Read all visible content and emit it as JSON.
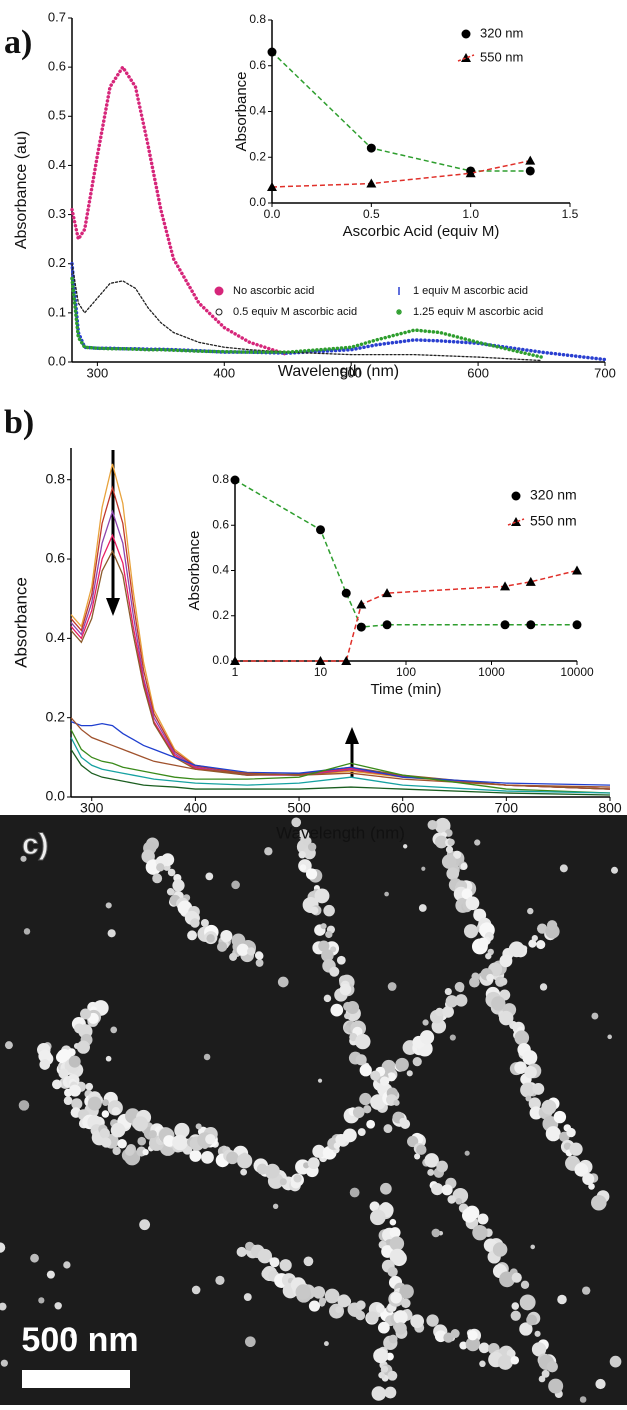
{
  "chart_data": [
    {
      "type": "line",
      "panel_label": "a)",
      "xlabel": "Wavelength (nm)",
      "ylabel": "Absorbance (au)",
      "xlim": [
        280,
        700
      ],
      "xticks": [
        300,
        400,
        500,
        600,
        700
      ],
      "ylim": [
        0,
        0.7
      ],
      "yticks": [
        {
          "value": 0,
          "label": "0.0"
        },
        0.1,
        0.2,
        0.3,
        0.4,
        0.5,
        0.6,
        0.7
      ],
      "x": [
        280,
        285,
        290,
        300,
        310,
        320,
        330,
        340,
        350,
        360,
        380,
        400,
        420,
        450,
        500,
        520,
        550,
        570,
        600,
        650,
        700
      ],
      "series": [
        {
          "name": "No ascorbic acid",
          "color": "#d6267a",
          "marker": "filled-circle",
          "line_style": "dotted",
          "values": [
            0.31,
            0.25,
            0.27,
            0.42,
            0.56,
            0.6,
            0.56,
            0.44,
            0.31,
            0.21,
            0.12,
            0.07,
            0.04,
            0.015,
            null,
            null,
            null,
            null,
            null,
            null,
            null
          ]
        },
        {
          "name": "1 equiv M ascorbic acid",
          "color": "#2a3fd0",
          "marker": "bar",
          "line_style": "dotted",
          "values": [
            0.2,
            0.06,
            0.03,
            0.028,
            0.028,
            0.027,
            0.027,
            0.026,
            0.026,
            0.025,
            0.023,
            0.02,
            0.02,
            0.018,
            0.025,
            0.035,
            0.045,
            0.043,
            0.038,
            0.02,
            0.005
          ]
        },
        {
          "name": "0.5 equiv M ascorbic acid",
          "color": "#222222",
          "marker": "open-circle",
          "line_style": "dotted",
          "values": [
            0.2,
            0.12,
            0.1,
            0.13,
            0.16,
            0.165,
            0.15,
            0.11,
            0.08,
            0.06,
            0.04,
            0.03,
            0.025,
            0.02,
            0.015,
            0.015,
            0.015,
            0.013,
            0.01,
            0.003,
            null
          ]
        },
        {
          "name": "1.25 equiv M ascorbic acid",
          "color": "#2e9e2e",
          "marker": "star",
          "line_style": "dotted",
          "values": [
            0.17,
            0.05,
            0.03,
            0.028,
            0.027,
            0.027,
            0.026,
            0.025,
            0.025,
            0.024,
            0.022,
            0.021,
            0.02,
            0.02,
            0.03,
            0.045,
            0.065,
            0.06,
            0.04,
            0.01,
            null
          ]
        }
      ]
    },
    {
      "type": "line",
      "xlabel": "Ascorbic Acid (equiv M)",
      "ylabel": "Absorbance",
      "xlim": [
        0,
        1.5
      ],
      "xticks": [
        {
          "value": 0,
          "label": "0.0"
        },
        0.5,
        {
          "value": 1,
          "label": "1.0"
        },
        1.5
      ],
      "ylim": [
        0,
        0.8
      ],
      "yticks": [
        {
          "value": 0,
          "label": "0.0"
        },
        0.2,
        0.4,
        0.6,
        0.8
      ],
      "x": [
        0,
        0.5,
        1,
        1.3
      ],
      "marker_color": "#000000",
      "line_style": "dashed",
      "series": [
        {
          "name": "320 nm",
          "color": "#2e9e2e",
          "marker": "filled-circle",
          "values": [
            0.66,
            0.24,
            0.14,
            0.14
          ]
        },
        {
          "name": "550 nm",
          "color": "#e0302a",
          "marker": "triangle",
          "values": [
            0.07,
            0.085,
            0.13,
            0.185
          ]
        }
      ]
    },
    {
      "type": "line",
      "panel_label": "b)",
      "xlabel": "Wavelength (nm)",
      "ylabel": "Absorbance",
      "xlim": [
        280,
        800
      ],
      "xticks": [
        300,
        400,
        500,
        600,
        700,
        800
      ],
      "ylim": [
        0,
        0.88
      ],
      "yticks": [
        {
          "value": 0,
          "label": "0.0"
        },
        0.2,
        0.4,
        0.6,
        0.8
      ],
      "x": [
        280,
        290,
        300,
        310,
        320,
        330,
        340,
        350,
        360,
        380,
        400,
        450,
        500,
        550,
        600,
        700,
        800
      ],
      "series": [
        {
          "color": "#e8a33d",
          "values": [
            0.46,
            0.43,
            0.53,
            0.73,
            0.84,
            0.74,
            0.52,
            0.34,
            0.22,
            0.12,
            0.08,
            0.06,
            0.055,
            0.065,
            0.05,
            0.03,
            0.02
          ]
        },
        {
          "color": "#c0392b",
          "values": [
            0.45,
            0.42,
            0.51,
            0.69,
            0.78,
            0.69,
            0.49,
            0.32,
            0.21,
            0.115,
            0.078,
            0.058,
            0.055,
            0.068,
            0.052,
            0.03,
            0.02
          ]
        },
        {
          "color": "#8e44ad",
          "values": [
            0.44,
            0.41,
            0.49,
            0.64,
            0.72,
            0.64,
            0.46,
            0.3,
            0.2,
            0.11,
            0.075,
            0.056,
            0.055,
            0.07,
            0.053,
            0.03,
            0.02
          ]
        },
        {
          "color": "#e91e63",
          "values": [
            0.43,
            0.4,
            0.47,
            0.6,
            0.66,
            0.59,
            0.43,
            0.29,
            0.19,
            0.105,
            0.073,
            0.055,
            0.056,
            0.072,
            0.054,
            0.03,
            0.02
          ]
        },
        {
          "color": "#8b5a2b",
          "values": [
            0.42,
            0.39,
            0.45,
            0.57,
            0.62,
            0.56,
            0.41,
            0.28,
            0.185,
            0.1,
            0.07,
            0.055,
            0.058,
            0.075,
            0.055,
            0.03,
            0.02
          ]
        },
        {
          "color": "#1f3fcf",
          "values": [
            0.19,
            0.18,
            0.18,
            0.185,
            0.18,
            0.16,
            0.145,
            0.13,
            0.12,
            0.1,
            0.08,
            0.062,
            0.06,
            0.075,
            0.05,
            0.035,
            0.03
          ]
        },
        {
          "color": "#a0522d",
          "values": [
            0.2,
            0.17,
            0.15,
            0.14,
            0.13,
            0.12,
            0.11,
            0.1,
            0.09,
            0.08,
            0.07,
            0.06,
            0.055,
            0.06,
            0.045,
            0.03,
            0.025
          ]
        },
        {
          "color": "#3a8a1a",
          "values": [
            0.17,
            0.12,
            0.1,
            0.09,
            0.085,
            0.075,
            0.07,
            0.065,
            0.06,
            0.05,
            0.045,
            0.045,
            0.05,
            0.085,
            0.055,
            0.02,
            0.01
          ]
        },
        {
          "color": "#17a2a2",
          "values": [
            0.15,
            0.1,
            0.08,
            0.07,
            0.065,
            0.06,
            0.055,
            0.05,
            0.045,
            0.04,
            0.035,
            0.03,
            0.035,
            0.05,
            0.03,
            0.015,
            0.01
          ]
        },
        {
          "color": "#1b5e20",
          "values": [
            0.12,
            0.08,
            0.06,
            0.05,
            0.045,
            0.04,
            0.035,
            0.03,
            0.028,
            0.025,
            0.02,
            0.02,
            0.02,
            0.025,
            0.02,
            0.01,
            0.005
          ]
        }
      ]
    },
    {
      "type": "line",
      "xlabel": "Time (min)",
      "ylabel": "Absorbance",
      "xscale": "log",
      "xlim": [
        1,
        10000
      ],
      "xticks": [
        1,
        10,
        100,
        1000,
        10000
      ],
      "ylim": [
        0,
        0.8
      ],
      "yticks": [
        {
          "value": 0,
          "label": "0.0"
        },
        0.2,
        0.4,
        0.6,
        0.8
      ],
      "x": [
        1,
        10,
        20,
        30,
        60,
        1440,
        2880,
        10000
      ],
      "marker_color": "#000000",
      "line_style": "dashed",
      "series": [
        {
          "name": "320 nm",
          "color": "#2e9e2e",
          "marker": "filled-circle",
          "values": [
            0.8,
            0.58,
            0.3,
            0.15,
            0.16,
            0.16,
            0.16,
            0.16
          ]
        },
        {
          "name": "550 nm",
          "color": "#e0302a",
          "marker": "triangle",
          "values": [
            0,
            0,
            0,
            0.25,
            0.3,
            0.33,
            0.35,
            0.4
          ]
        }
      ]
    }
  ],
  "panel_c": {
    "label": "c)",
    "scale_bar": "500 nm"
  }
}
